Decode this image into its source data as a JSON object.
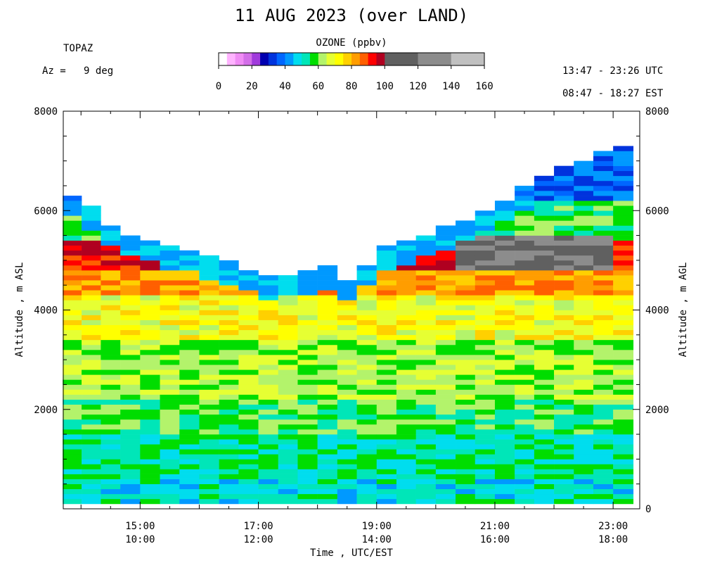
{
  "header": {
    "title": "11 AUG 2023 (over LAND)",
    "site": "TOPAZ",
    "azimuth": "Az =   9 deg",
    "utc_range": "13:47 - 23:26 UTC",
    "est_range": "08:47 - 18:27 EST"
  },
  "colorbar": {
    "title": "OZONE (ppbv)",
    "ticks": [
      "0",
      "20",
      "40",
      "60",
      "80",
      "100",
      "120",
      "140",
      "160"
    ],
    "min": 0,
    "max": 160,
    "bins": [
      {
        "from": 0,
        "to": 5,
        "color": "#ffffff"
      },
      {
        "from": 5,
        "to": 10,
        "color": "#ffb3ff"
      },
      {
        "from": 10,
        "to": 15,
        "color": "#f08cf5"
      },
      {
        "from": 15,
        "to": 20,
        "color": "#d36ee8"
      },
      {
        "from": 20,
        "to": 25,
        "color": "#a13bdc"
      },
      {
        "from": 25,
        "to": 30,
        "color": "#0000b0"
      },
      {
        "from": 30,
        "to": 35,
        "color": "#0033dd"
      },
      {
        "from": 35,
        "to": 40,
        "color": "#0066ff"
      },
      {
        "from": 40,
        "to": 45,
        "color": "#0099ff"
      },
      {
        "from": 45,
        "to": 50,
        "color": "#00ddee"
      },
      {
        "from": 50,
        "to": 55,
        "color": "#00e6b8"
      },
      {
        "from": 55,
        "to": 60,
        "color": "#00dd00"
      },
      {
        "from": 60,
        "to": 65,
        "color": "#b3f36b"
      },
      {
        "from": 65,
        "to": 70,
        "color": "#e6ff33"
      },
      {
        "from": 70,
        "to": 75,
        "color": "#ffff00"
      },
      {
        "from": 75,
        "to": 80,
        "color": "#ffd000"
      },
      {
        "from": 80,
        "to": 85,
        "color": "#ff9d00"
      },
      {
        "from": 85,
        "to": 90,
        "color": "#ff5f00"
      },
      {
        "from": 90,
        "to": 95,
        "color": "#ff0000"
      },
      {
        "from": 95,
        "to": 100,
        "color": "#b00020"
      },
      {
        "from": 100,
        "to": 120,
        "color": "#606060"
      },
      {
        "from": 120,
        "to": 140,
        "color": "#8c8c8c"
      },
      {
        "from": 140,
        "to": 160,
        "color": "#c0c0c0"
      }
    ]
  },
  "chart_data": {
    "type": "heatmap",
    "title": "11 AUG 2023 (over LAND)",
    "xlabel": "Time , UTC/EST",
    "ylabel": "Altitude , m ASL",
    "ylabel_right": "Altitude , m AGL",
    "x_ticks_utc": [
      "15:00",
      "17:00",
      "19:00",
      "21:00",
      "23:00"
    ],
    "x_ticks_est": [
      "10:00",
      "12:00",
      "14:00",
      "16:00",
      "18:00"
    ],
    "x_tick_hours_utc": [
      15,
      17,
      19,
      21,
      23
    ],
    "xlim_hours_utc": [
      13.7,
      23.45
    ],
    "y_ticks_left": [
      "2000",
      "4000",
      "6000",
      "8000"
    ],
    "y_ticks_right": [
      "0",
      "2000",
      "4000",
      "6000",
      "8000"
    ],
    "ylim": [
      0,
      8000
    ],
    "grid": false,
    "profile_top_hours_utc": [
      13.85,
      14.17,
      14.5,
      14.83,
      15.17,
      15.5,
      15.83,
      16.17,
      16.5,
      16.83,
      17.17,
      17.5,
      17.83,
      18.17,
      18.5,
      18.83,
      19.17,
      19.5,
      19.83,
      20.17,
      20.5,
      20.83,
      21.17,
      21.5,
      21.83,
      22.17,
      22.5,
      22.83,
      23.17
    ],
    "profile_top_altitude_m": [
      6300,
      6050,
      5700,
      5500,
      5400,
      5250,
      5200,
      5050,
      4950,
      4800,
      4650,
      4700,
      4750,
      4850,
      4600,
      4900,
      5250,
      5350,
      5500,
      5650,
      5800,
      6000,
      6200,
      6450,
      6650,
      6850,
      6950,
      7150,
      7300
    ],
    "ozone_layers_ppbv": [
      {
        "alt_from": 100,
        "alt_to": 600,
        "value": 50
      },
      {
        "alt_from": 600,
        "alt_to": 1500,
        "value": 53
      },
      {
        "alt_from": 1500,
        "alt_to": 2200,
        "value": 57
      },
      {
        "alt_from": 2200,
        "alt_to": 3400,
        "value": 63
      },
      {
        "alt_from": 3400,
        "alt_to": 4300,
        "value": 70
      },
      {
        "alt_from": 4300,
        "alt_to": 4800,
        "value": 82
      },
      {
        "alt_from": 4800,
        "alt_to": 5400,
        "value": 93
      },
      {
        "alt_from": 5400,
        "alt_to": 6200,
        "value": 58
      },
      {
        "alt_from": 6200,
        "alt_to": 7300,
        "value": 38
      }
    ]
  }
}
